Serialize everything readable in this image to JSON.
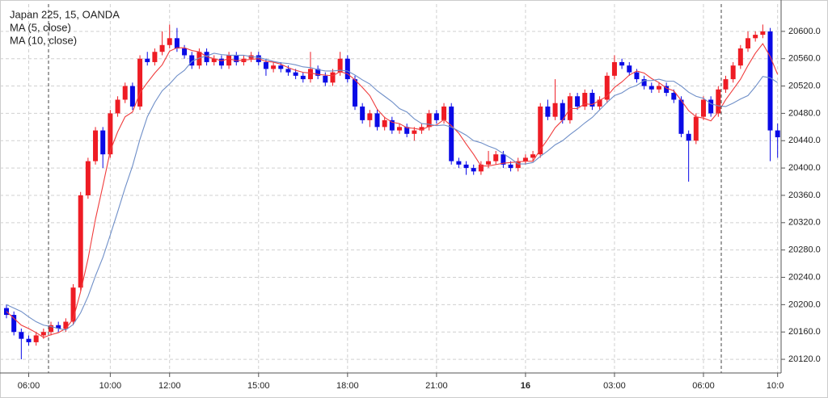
{
  "chart_data": {
    "type": "candlestick",
    "title": "Japan 225, 15, OANDA",
    "categories": [
      null,
      null,
      null,
      "06:00",
      null,
      null,
      null,
      null,
      null,
      null,
      null,
      null,
      null,
      null,
      "10:00",
      null,
      null,
      null,
      null,
      null,
      null,
      null,
      "12:00",
      null,
      null,
      null,
      null,
      null,
      null,
      null,
      null,
      null,
      null,
      null,
      "15:00",
      null,
      null,
      null,
      null,
      null,
      null,
      null,
      null,
      null,
      null,
      null,
      "18:00",
      null,
      null,
      null,
      null,
      null,
      null,
      null,
      null,
      null,
      null,
      null,
      "21:00",
      null,
      null,
      null,
      null,
      null,
      null,
      null,
      null,
      null,
      null,
      null,
      "16",
      null,
      null,
      null,
      null,
      null,
      null,
      null,
      null,
      null,
      null,
      null,
      "03:00",
      null,
      null,
      null,
      null,
      null,
      null,
      null,
      null,
      null,
      null,
      null,
      "06:00",
      null,
      null,
      null,
      null,
      null,
      null,
      null,
      null,
      null,
      "10:00"
    ],
    "open": [
      20195,
      20185,
      20160,
      20150,
      20145,
      20155,
      20160,
      20170,
      20165,
      20175,
      20225,
      20360,
      20410,
      20455,
      20420,
      20480,
      20500,
      20520,
      20490,
      20560,
      20555,
      20570,
      20580,
      20590,
      20575,
      20565,
      20550,
      20570,
      20555,
      20560,
      20550,
      20565,
      20555,
      20560,
      20565,
      20555,
      20545,
      20550,
      20545,
      20540,
      20535,
      20530,
      20545,
      20535,
      20525,
      20540,
      20560,
      20530,
      20490,
      20470,
      20480,
      20460,
      20470,
      20455,
      20460,
      20450,
      20455,
      20460,
      20480,
      20470,
      20490,
      20410,
      20405,
      20400,
      20395,
      20405,
      20410,
      20420,
      20405,
      20400,
      20410,
      20415,
      20420,
      20490,
      20475,
      20495,
      20470,
      20505,
      20490,
      20510,
      20490,
      20500,
      20535,
      20555,
      20550,
      20540,
      20530,
      20520,
      20515,
      20520,
      20510,
      20500,
      20450,
      20440,
      20475,
      20500,
      20480,
      20515,
      20530,
      20550,
      20575,
      20590,
      20595,
      20600,
      20455
    ],
    "high": [
      20200,
      20190,
      20165,
      20155,
      20160,
      20165,
      20175,
      20175,
      20180,
      20230,
      20365,
      20415,
      20460,
      20460,
      20485,
      20505,
      20525,
      20525,
      20565,
      20570,
      20575,
      20600,
      20610,
      20605,
      20580,
      20570,
      20575,
      20575,
      20565,
      20565,
      20570,
      20570,
      20565,
      20570,
      20570,
      20560,
      20555,
      20555,
      20550,
      20545,
      20540,
      20570,
      20550,
      20540,
      20545,
      20570,
      20565,
      20535,
      20495,
      20485,
      20485,
      20475,
      20475,
      20465,
      20465,
      20460,
      20465,
      20485,
      20485,
      20495,
      20495,
      20415,
      20410,
      20405,
      20410,
      20425,
      20425,
      20425,
      20410,
      20415,
      20420,
      20425,
      20495,
      20500,
      20530,
      20500,
      20510,
      20510,
      20515,
      20515,
      20505,
      20540,
      20565,
      20560,
      20555,
      20545,
      20535,
      20525,
      20525,
      20525,
      20515,
      20505,
      20455,
      20480,
      20505,
      20505,
      20520,
      20535,
      20555,
      20580,
      20600,
      20600,
      20610,
      20605,
      20465
    ],
    "low": [
      20180,
      20155,
      20120,
      20140,
      20140,
      20150,
      20155,
      20160,
      20160,
      20170,
      20220,
      20355,
      20405,
      20400,
      20415,
      20475,
      20495,
      20485,
      20485,
      20550,
      20550,
      20565,
      20575,
      20570,
      20560,
      20545,
      20545,
      20550,
      20550,
      20545,
      20545,
      20550,
      20550,
      20555,
      20550,
      20535,
      20540,
      20540,
      20535,
      20530,
      20525,
      20525,
      20530,
      20520,
      20520,
      20535,
      20525,
      20485,
      20465,
      20460,
      20455,
      20455,
      20450,
      20450,
      20445,
      20440,
      20450,
      20455,
      20465,
      20465,
      20405,
      20400,
      20390,
      20390,
      20390,
      20400,
      20405,
      20400,
      20395,
      20395,
      20405,
      20410,
      20415,
      20470,
      20470,
      20465,
      20465,
      20485,
      20485,
      20485,
      20485,
      20495,
      20530,
      20545,
      20535,
      20525,
      20515,
      20510,
      20510,
      20505,
      20495,
      20445,
      20380,
      20435,
      20470,
      20475,
      20475,
      20510,
      20525,
      20545,
      20570,
      20585,
      20590,
      20410,
      20415
    ],
    "close": [
      20185,
      20160,
      20150,
      20145,
      20155,
      20160,
      20170,
      20165,
      20175,
      20225,
      20360,
      20410,
      20455,
      20420,
      20480,
      20500,
      20520,
      20490,
      20560,
      20555,
      20570,
      20580,
      20590,
      20575,
      20565,
      20550,
      20570,
      20555,
      20560,
      20550,
      20565,
      20555,
      20560,
      20565,
      20555,
      20545,
      20550,
      20545,
      20540,
      20535,
      20530,
      20545,
      20535,
      20525,
      20540,
      20560,
      20530,
      20490,
      20470,
      20480,
      20460,
      20470,
      20455,
      20460,
      20450,
      20455,
      20460,
      20480,
      20470,
      20490,
      20410,
      20405,
      20400,
      20395,
      20405,
      20410,
      20420,
      20405,
      20400,
      20410,
      20415,
      20420,
      20490,
      20475,
      20495,
      20470,
      20505,
      20490,
      20510,
      20490,
      20500,
      20535,
      20555,
      20550,
      20540,
      20530,
      20520,
      20515,
      20520,
      20510,
      20500,
      20450,
      20440,
      20475,
      20500,
      20480,
      20515,
      20530,
      20550,
      20575,
      20590,
      20595,
      20600,
      20455,
      20445
    ],
    "up_color": "#ee1c24",
    "down_color": "#0a0ae6",
    "series": [
      {
        "name": "MA (5, close)",
        "color": "#f03c3c",
        "values": [
          20190,
          20180,
          20170,
          20165,
          20159,
          20152,
          20156,
          20159,
          20165,
          20179,
          20219,
          20267,
          20325,
          20374,
          20425,
          20453,
          20475,
          20482,
          20510,
          20525,
          20539,
          20551,
          20571,
          20576,
          20576,
          20572,
          20570,
          20563,
          20560,
          20557,
          20560,
          20557,
          20558,
          20559,
          20560,
          20556,
          20555,
          20552,
          20547,
          20543,
          20540,
          20539,
          20537,
          20536,
          20535,
          20541,
          20538,
          20529,
          20518,
          20506,
          20486,
          20474,
          20467,
          20465,
          20459,
          20458,
          20456,
          20461,
          20463,
          20471,
          20462,
          20451,
          20435,
          20420,
          20403,
          20403,
          20405,
          20407,
          20408,
          20409,
          20410,
          20410,
          20427,
          20442,
          20459,
          20470,
          20487,
          20487,
          20494,
          20493,
          20499,
          20505,
          20518,
          20526,
          20536,
          20542,
          20539,
          20531,
          20525,
          20517,
          20513,
          20499,
          20484,
          20475,
          20473,
          20469,
          20482,
          20500,
          20515,
          20530,
          20550,
          20568,
          20582,
          20563,
          20537
        ]
      },
      {
        "name": "MA (10, close)",
        "color": "#6f8fc8",
        "values": [
          20200,
          20195,
          20190,
          20182,
          20175,
          20170,
          20168,
          20165,
          20163,
          20171,
          20188,
          20212,
          20242,
          20269,
          20302,
          20336,
          20371,
          20403,
          20442,
          20475,
          20496,
          20513,
          20523,
          20535,
          20543,
          20556,
          20561,
          20564,
          20568,
          20566,
          20565,
          20565,
          20565,
          20563,
          20562,
          20559,
          20556,
          20554,
          20553,
          20551,
          20548,
          20547,
          20544,
          20542,
          20542,
          20543,
          20542,
          20536,
          20529,
          20523,
          20513,
          20505,
          20497,
          20487,
          20482,
          20472,
          20465,
          20464,
          20462,
          20463,
          20460,
          20454,
          20448,
          20440,
          20437,
          20432,
          20428,
          20421,
          20414,
          20406,
          20406,
          20408,
          20417,
          20425,
          20434,
          20440,
          20449,
          20457,
          20466,
          20474,
          20485,
          20496,
          20506,
          20510,
          20517,
          20521,
          20528,
          20528,
          20530,
          20527,
          20527,
          20520,
          20511,
          20505,
          20502,
          20494,
          20491,
          20490,
          20495,
          20501,
          20506,
          20519,
          20534,
          20532,
          20525
        ]
      }
    ],
    "ylim": [
      20100,
      20640
    ],
    "yticks": [
      {
        "value": 20120,
        "label": "20120.0"
      },
      {
        "value": 20160,
        "label": "20160.0"
      },
      {
        "value": 20200,
        "label": "20200.0"
      },
      {
        "value": 20240,
        "label": "20240.0"
      },
      {
        "value": 20280,
        "label": "20280.0"
      },
      {
        "value": 20320,
        "label": "20320.0"
      },
      {
        "value": 20360,
        "label": "20360.0"
      },
      {
        "value": 20400,
        "label": "20400.0"
      },
      {
        "value": 20440,
        "label": "20440.0"
      },
      {
        "value": 20480,
        "label": "20480.0"
      },
      {
        "value": 20520,
        "label": "20520.0"
      },
      {
        "value": 20560,
        "label": "20560.0"
      },
      {
        "value": 20600,
        "label": "20600.0"
      }
    ],
    "grid": true
  }
}
